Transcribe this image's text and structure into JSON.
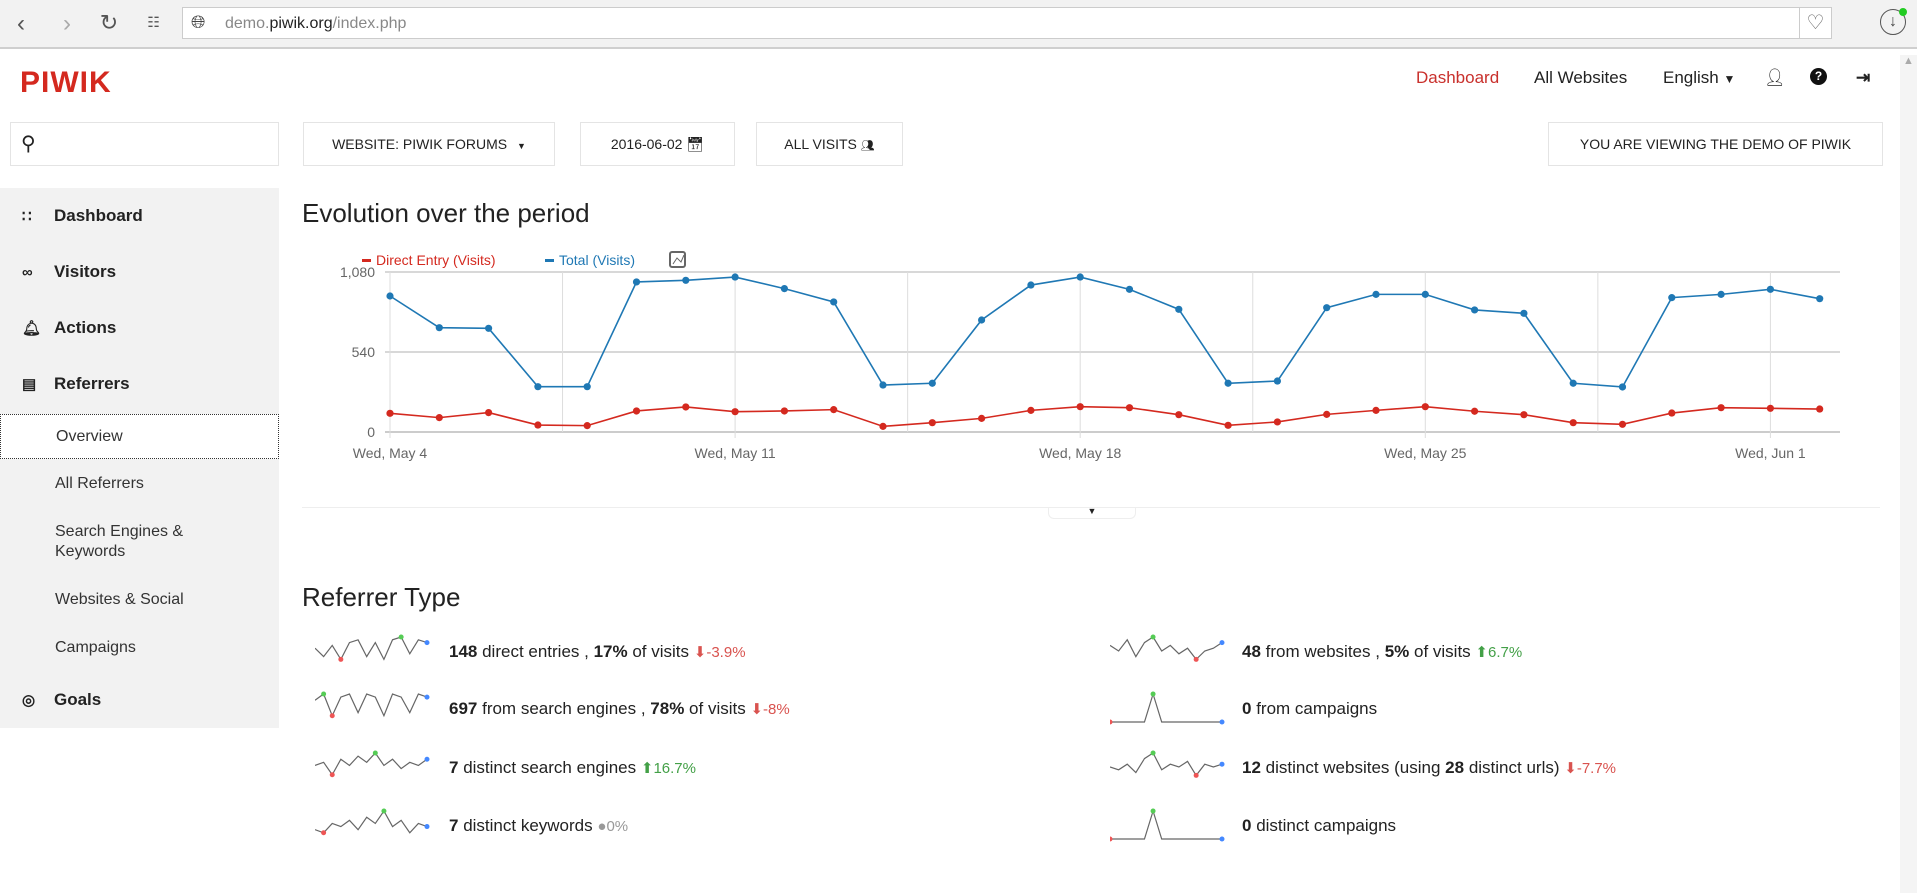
{
  "browser": {
    "url_host_pre": "demo.",
    "url_host": "piwik.org",
    "url_path": "/index.php"
  },
  "header": {
    "logo": "PIWIK",
    "nav": {
      "dashboard": "Dashboard",
      "all_websites": "All Websites",
      "language": "English"
    }
  },
  "toolbar": {
    "site_selector": "WEBSITE: PIWIK FORUMS",
    "date": "2016-06-02",
    "segment": "ALL VISITS",
    "demo_notice": "YOU ARE VIEWING THE DEMO OF PIWIK"
  },
  "sidebar": {
    "dashboard": "Dashboard",
    "visitors": "Visitors",
    "actions": "Actions",
    "referrers": "Referrers",
    "sub": [
      "Overview",
      "All Referrers",
      "Search Engines & Keywords",
      "Websites & Social",
      "Campaigns"
    ],
    "goals": "Goals"
  },
  "colors": {
    "accent": "#d4291f",
    "direct": "#d4291f",
    "total": "#1f78b4"
  },
  "evolution": {
    "title": "Evolution over the period"
  },
  "chart_data": {
    "type": "line",
    "title": "Evolution over the period",
    "x": [
      "May 4",
      "May 5",
      "May 6",
      "May 7",
      "May 8",
      "May 9",
      "May 10",
      "May 11",
      "May 12",
      "May 13",
      "May 14",
      "May 15",
      "May 16",
      "May 17",
      "May 18",
      "May 19",
      "May 20",
      "May 21",
      "May 22",
      "May 23",
      "May 24",
      "May 25",
      "May 26",
      "May 27",
      "May 28",
      "May 29",
      "May 30",
      "May 31",
      "Jun 1",
      "Jun 2"
    ],
    "xticks": [
      "Wed, May 4",
      "Wed, May 11",
      "Wed, May 18",
      "Wed, May 25",
      "Wed, Jun 1"
    ],
    "yticks": [
      "0",
      "540",
      "1,080"
    ],
    "ylim": [
      0,
      1080
    ],
    "legend_position": "top-left",
    "series": [
      {
        "name": "Direct Entry (Visits)",
        "color": "#d4291f",
        "values": [
          126,
          97,
          131,
          47,
          43,
          142,
          169,
          137,
          142,
          151,
          38,
          63,
          92,
          146,
          171,
          164,
          117,
          45,
          68,
          119,
          146,
          171,
          140,
          117,
          63,
          52,
          128,
          164,
          160,
          155
        ]
      },
      {
        "name": "Total (Visits)",
        "color": "#1f78b4",
        "values": [
          918,
          704,
          700,
          306,
          306,
          1013,
          1024,
          1046,
          968,
          878,
          317,
          329,
          756,
          992,
          1046,
          963,
          828,
          329,
          344,
          839,
          929,
          929,
          824,
          801,
          329,
          304,
          907,
          929,
          963,
          900
        ]
      }
    ]
  },
  "referrer_type": {
    "title": "Referrer Type",
    "left": [
      {
        "n": "148",
        "t1": " direct entries , ",
        "p": "17%",
        "t2": " of visits",
        "trend": "down",
        "change": "-3.9%",
        "spark": [
          6,
          3,
          7,
          2,
          8,
          9,
          3,
          8,
          2,
          9,
          10,
          4,
          9,
          8
        ]
      },
      {
        "n": "697",
        "t1": " from search engines , ",
        "p": "78%",
        "t2": " of visits",
        "trend": "down",
        "change": "-8%",
        "spark": [
          7,
          9,
          2,
          8,
          9,
          3,
          9,
          8,
          2,
          9,
          8,
          3,
          9,
          8
        ]
      },
      {
        "n": "7",
        "t1": " distinct search engines",
        "p": "",
        "t2": "",
        "trend": "up",
        "change": "16.7%",
        "spark": [
          5,
          6,
          2,
          7,
          5,
          8,
          6,
          9,
          5,
          7,
          4,
          6,
          5,
          7
        ]
      },
      {
        "n": "7",
        "t1": " distinct keywords",
        "p": "",
        "t2": "",
        "trend": "none",
        "change": "0%",
        "spark": [
          3,
          2,
          5,
          4,
          6,
          3,
          7,
          5,
          9,
          4,
          6,
          2,
          5,
          4
        ]
      }
    ],
    "right": [
      {
        "n": "48",
        "t1": " from websites , ",
        "p": "5%",
        "t2": " of visits",
        "trend": "up",
        "change": "6.7%",
        "spark": [
          7,
          5,
          9,
          3,
          8,
          10,
          5,
          7,
          4,
          6,
          2,
          5,
          6,
          8
        ]
      },
      {
        "n": "0",
        "t1": " from campaigns",
        "p": "",
        "t2": "",
        "trend": "none_hidden",
        "change": "",
        "spark": [
          0,
          0,
          0,
          0,
          0,
          10,
          0,
          0,
          0,
          0,
          0,
          0,
          0,
          0
        ]
      },
      {
        "n": "12",
        "t1": " distinct websites (using ",
        "p": "28",
        "t2": " distinct urls)",
        "trend": "down",
        "change": "-7.7%",
        "spark": [
          5,
          4,
          6,
          3,
          8,
          10,
          4,
          6,
          5,
          7,
          2,
          6,
          5,
          6
        ]
      },
      {
        "n": "0",
        "t1": " distinct campaigns",
        "p": "",
        "t2": "",
        "trend": "none_hidden",
        "change": "",
        "spark": [
          0,
          0,
          0,
          0,
          0,
          10,
          0,
          0,
          0,
          0,
          0,
          0,
          0,
          0
        ]
      }
    ]
  }
}
